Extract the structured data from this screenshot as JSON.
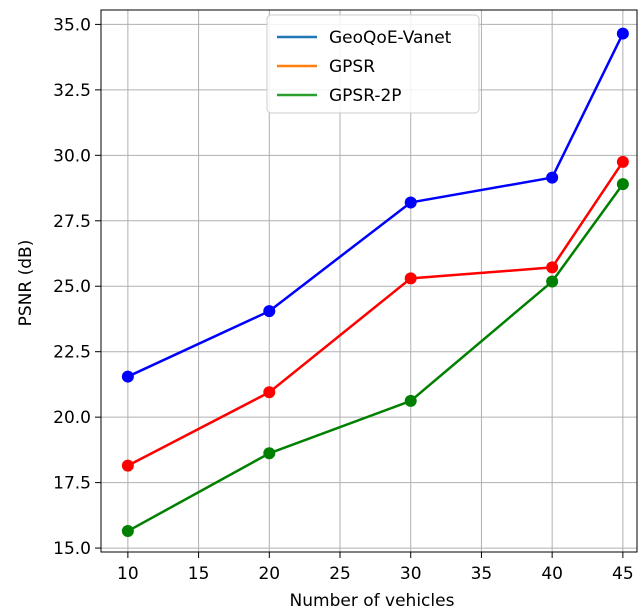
{
  "chart_data": {
    "type": "line",
    "title": "",
    "xlabel": "Number of vehicles",
    "ylabel": "PSNR (dB)",
    "x": [
      10,
      20,
      30,
      40,
      45
    ],
    "xlim": [
      8.1,
      46.0
    ],
    "ylim": [
      14.85,
      35.55
    ],
    "xticks": [
      10,
      15,
      20,
      25,
      30,
      35,
      40,
      45
    ],
    "xtick_labels": [
      "10",
      "15",
      "20",
      "25",
      "30",
      "35",
      "40",
      "45"
    ],
    "yticks": [
      15.0,
      17.5,
      20.0,
      22.5,
      25.0,
      27.5,
      30.0,
      32.5,
      35.0
    ],
    "ytick_labels": [
      "15.0",
      "17.5",
      "20.0",
      "22.5",
      "25.0",
      "27.5",
      "30.0",
      "32.5",
      "35.0"
    ],
    "grid": true,
    "legend_position": "top-center",
    "series": [
      {
        "name": "GeoQoE-Vanet",
        "values": [
          21.55,
          24.05,
          28.2,
          29.15,
          34.65
        ],
        "legend_color": "#1f77b4",
        "line_color": "#0000ff"
      },
      {
        "name": "GPSR",
        "values": [
          18.15,
          20.95,
          25.3,
          25.72,
          29.75
        ],
        "legend_color": "#ff7f0e",
        "line_color": "#ff0000"
      },
      {
        "name": "GPSR-2P",
        "values": [
          15.65,
          18.62,
          20.62,
          25.18,
          28.9
        ],
        "legend_color": "#2ca02c",
        "line_color": "#008000"
      }
    ]
  }
}
